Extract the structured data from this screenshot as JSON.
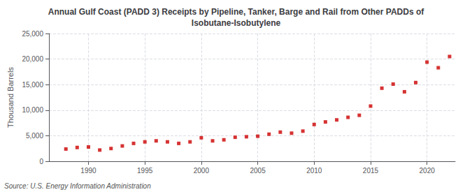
{
  "chart_data": {
    "type": "scatter",
    "title": "Annual Gulf Coast (PADD 3) Receipts by Pipeline, Tanker, Barge and Rail from Other PADDs of\nIsobutane-Isobutylene",
    "ylabel": "Thousand Barrels",
    "annotations": [
      "Source: U.S. Energy Information Administration"
    ],
    "x": [
      1988,
      1989,
      1990,
      1991,
      1992,
      1993,
      1994,
      1995,
      1996,
      1997,
      1998,
      1999,
      2000,
      2001,
      2002,
      2003,
      2004,
      2005,
      2006,
      2007,
      2008,
      2009,
      2010,
      2011,
      2012,
      2013,
      2014,
      2015,
      2016,
      2017,
      2018,
      2019,
      2020,
      2021,
      2022
    ],
    "values": [
      2400,
      2700,
      2800,
      2200,
      2500,
      3000,
      3500,
      3800,
      4000,
      3800,
      3500,
      3800,
      4600,
      4000,
      4200,
      4700,
      4800,
      4900,
      5300,
      5700,
      5500,
      5900,
      7200,
      7700,
      8100,
      8600,
      9000,
      10800,
      14300,
      15100,
      13600,
      15400,
      19400,
      18300,
      20500
    ],
    "color": "#cc0000",
    "marker": "square",
    "xlim": [
      1986.5,
      2022.5
    ],
    "xticks": [
      1990,
      1995,
      2000,
      2005,
      2010,
      2015,
      2020
    ],
    "ylim": [
      0,
      25000
    ],
    "yticks": [
      0,
      {
        "value": 5000,
        "label": "5,000"
      },
      {
        "value": 10000,
        "label": "10,000"
      },
      {
        "value": 15000,
        "label": "15,000"
      },
      {
        "value": 20000,
        "label": "20,000"
      },
      {
        "value": 25000,
        "label": "25,000"
      }
    ],
    "grid": true
  }
}
